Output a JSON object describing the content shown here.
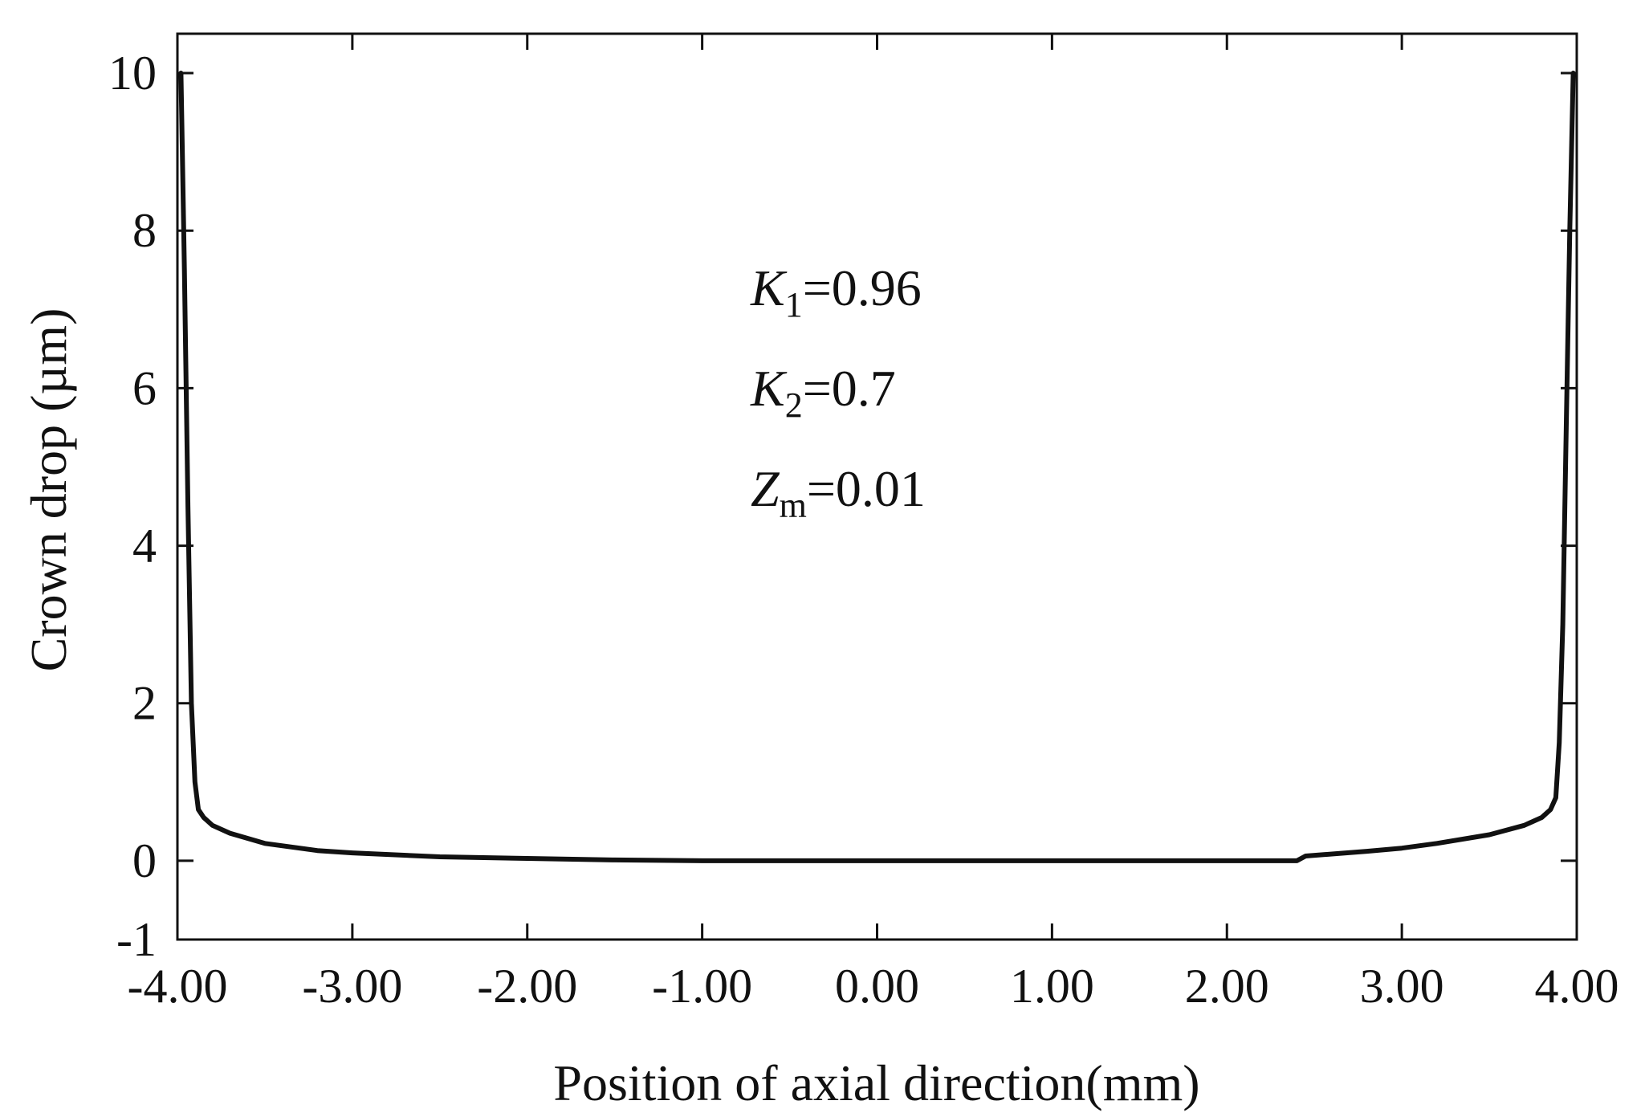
{
  "chart_data": {
    "type": "line",
    "title": "",
    "xlabel": "Position of axial direction(mm)",
    "ylabel": "Crown drop (µm)",
    "xlim": [
      -4.0,
      4.0
    ],
    "ylim": [
      -1,
      10.5
    ],
    "xticks": [
      -4.0,
      -3.0,
      -2.0,
      -1.0,
      0.0,
      1.0,
      2.0,
      3.0,
      4.0
    ],
    "xtick_labels": [
      "-4.00",
      "-3.00",
      "-2.00",
      "-1.00",
      "0.00",
      "1.00",
      "2.00",
      "3.00",
      "4.00"
    ],
    "yticks": [
      -1,
      0,
      2,
      4,
      6,
      8,
      10
    ],
    "ytick_labels": [
      "-1",
      "0",
      "2",
      "4",
      "6",
      "8",
      "10"
    ],
    "grid": false,
    "series": [
      {
        "color": "#111111",
        "x": [
          -3.98,
          -3.96,
          -3.94,
          -3.92,
          -3.9,
          -3.88,
          -3.85,
          -3.8,
          -3.7,
          -3.5,
          -3.2,
          -3.0,
          -2.5,
          -2.0,
          -1.5,
          -1.0,
          -0.5,
          0.0,
          0.5,
          1.0,
          1.5,
          2.0,
          2.4,
          2.45,
          2.8,
          3.0,
          3.2,
          3.5,
          3.7,
          3.8,
          3.85,
          3.88,
          3.9,
          3.92,
          3.94,
          3.96,
          3.98
        ],
        "y": [
          10.0,
          7.5,
          4.5,
          2.0,
          1.0,
          0.65,
          0.55,
          0.45,
          0.35,
          0.22,
          0.13,
          0.1,
          0.05,
          0.03,
          0.01,
          0.0,
          0.0,
          0.0,
          0.0,
          0.0,
          0.0,
          0.0,
          0.0,
          0.06,
          0.12,
          0.16,
          0.22,
          0.33,
          0.45,
          0.55,
          0.65,
          0.8,
          1.5,
          3.0,
          5.5,
          8.0,
          10.0
        ]
      }
    ],
    "annotations": [
      {
        "symbol": "K",
        "subscript": "1",
        "text": "=0.96"
      },
      {
        "symbol": "K",
        "subscript": "2",
        "text": "=0.7"
      },
      {
        "symbol": "Z",
        "subscript": "m",
        "text": "=0.01"
      }
    ]
  }
}
